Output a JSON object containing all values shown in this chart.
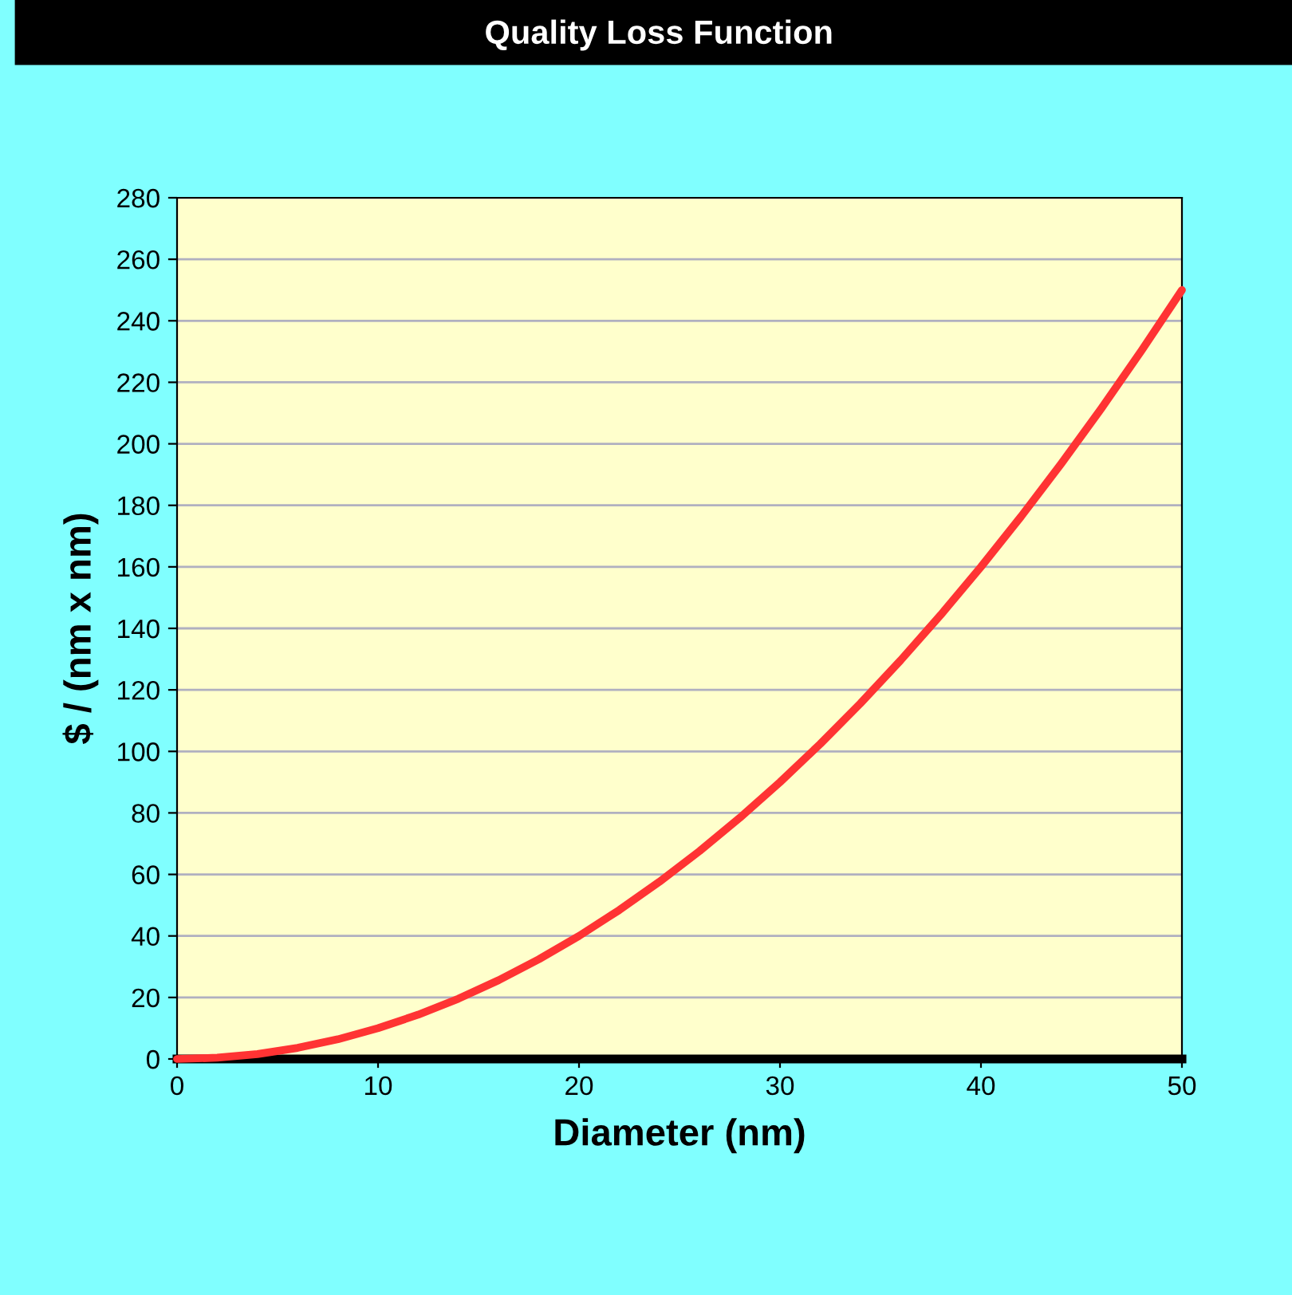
{
  "chart_data": {
    "type": "line",
    "title": "Quality Loss Function",
    "xlabel": "Diameter (nm)",
    "ylabel": "$ / (nm x nm)",
    "x": [
      0,
      2,
      4,
      6,
      8,
      10,
      12,
      14,
      16,
      18,
      20,
      22,
      24,
      26,
      28,
      30,
      32,
      34,
      36,
      38,
      40,
      42,
      44,
      46,
      48,
      50
    ],
    "series": [
      {
        "color": "#ff3333",
        "values": [
          0,
          0.4,
          1.6,
          3.6,
          6.4,
          10,
          14.4,
          19.6,
          25.6,
          32.4,
          40,
          48.4,
          57.6,
          67.6,
          78.4,
          90,
          102.4,
          115.6,
          129.6,
          144.4,
          160,
          176.4,
          193.6,
          211.6,
          230.4,
          250
        ]
      }
    ],
    "xlim": [
      0,
      50
    ],
    "xticks": [
      0,
      10,
      20,
      30,
      40,
      50
    ],
    "ylim": [
      0,
      280
    ],
    "yticks": [
      0,
      20,
      40,
      60,
      80,
      100,
      120,
      140,
      160,
      180,
      200,
      220,
      240,
      260,
      280
    ],
    "grid": "y",
    "marker": "none",
    "line_style": "solid",
    "legend": false
  }
}
